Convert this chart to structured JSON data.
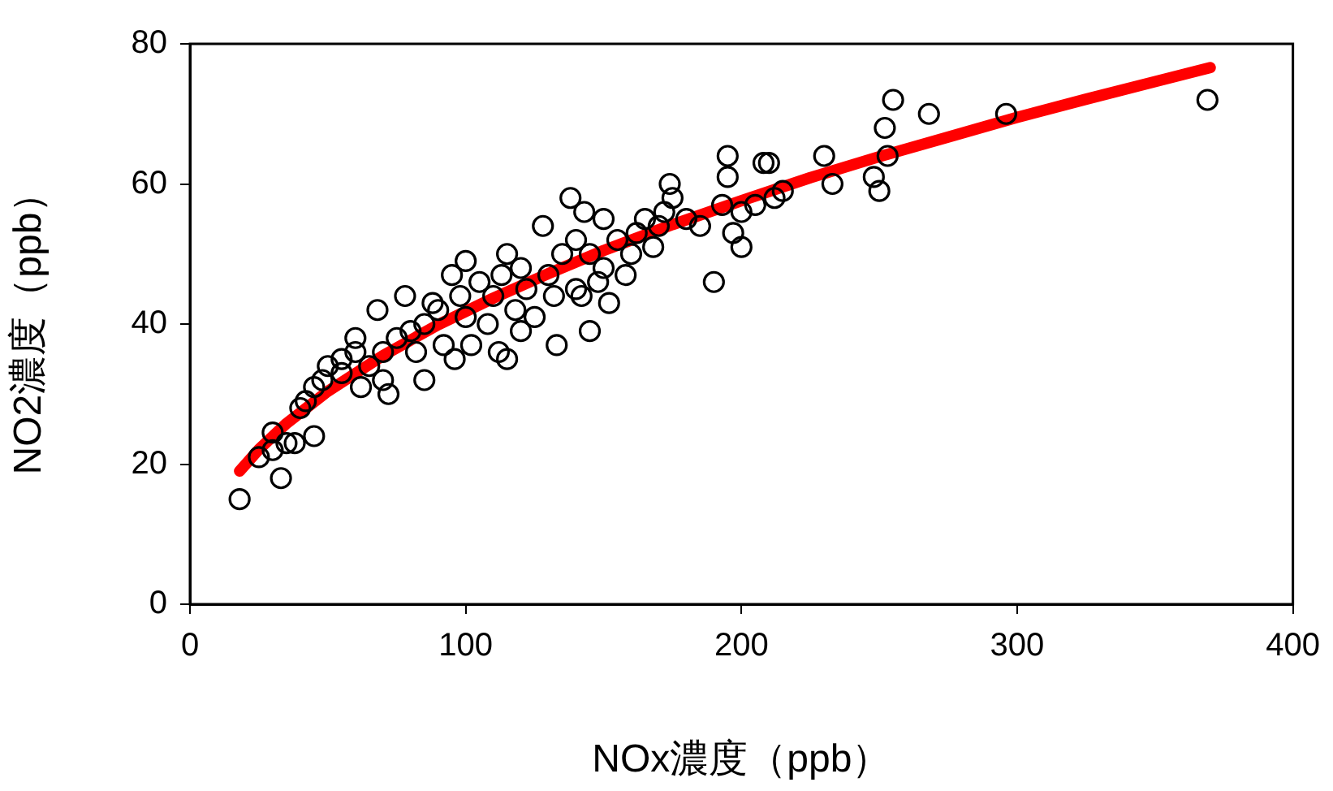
{
  "chart_data": {
    "type": "scatter",
    "xlabel": "NOx濃度（ppb）",
    "ylabel": "NO2濃度（ppb）",
    "xlim": [
      0,
      400
    ],
    "xticks": [
      0,
      100,
      200,
      300,
      400
    ],
    "ylim": [
      0,
      80
    ],
    "yticks": [
      0,
      20,
      40,
      60,
      80
    ],
    "marker": "circle",
    "legend": false,
    "series": [
      {
        "type": "scatter",
        "color": "#000000",
        "x": [
          18,
          33,
          25,
          30,
          38,
          45,
          30,
          35,
          40,
          42,
          45,
          48,
          50,
          55,
          55,
          60,
          60,
          62,
          65,
          68,
          70,
          70,
          72,
          75,
          78,
          80,
          82,
          85,
          85,
          88,
          90,
          92,
          95,
          96,
          98,
          100,
          100,
          102,
          105,
          108,
          110,
          112,
          113,
          115,
          115,
          118,
          120,
          120,
          122,
          125,
          128,
          130,
          132,
          133,
          135,
          138,
          140,
          140,
          142,
          143,
          145,
          145,
          148,
          150,
          150,
          152,
          155,
          158,
          160,
          162,
          165,
          168,
          170,
          172,
          174,
          175,
          180,
          185,
          190,
          193,
          195,
          195,
          197,
          200,
          200,
          205,
          208,
          210,
          212,
          215,
          230,
          233,
          248,
          250,
          252,
          253,
          255,
          268,
          296,
          369
        ],
        "values": [
          15,
          18,
          21,
          22,
          23,
          24,
          24.5,
          23,
          28,
          29,
          31,
          32,
          34,
          33,
          35,
          36,
          38,
          31,
          34,
          42,
          36,
          32,
          30,
          38,
          44,
          39,
          36,
          40,
          32,
          43,
          42,
          37,
          47,
          35,
          44,
          41,
          49,
          37,
          46,
          40,
          44,
          36,
          47,
          35,
          50,
          42,
          48,
          39,
          45,
          41,
          54,
          47,
          44,
          37,
          50,
          58,
          45,
          52,
          44,
          56,
          39,
          50,
          46,
          55,
          48,
          43,
          52,
          47,
          50,
          53,
          55,
          51,
          54,
          56,
          60,
          58,
          55,
          54,
          46,
          57,
          61,
          64,
          53,
          51,
          56,
          57,
          63,
          63,
          58,
          59,
          64,
          60,
          61,
          59,
          68,
          64,
          72,
          70,
          70,
          72
        ]
      },
      {
        "type": "line",
        "color": "#ff0000",
        "marker": "none",
        "x": [
          18,
          25,
          35,
          50,
          70,
          90,
          110,
          130,
          150,
          175,
          200,
          225,
          250,
          275,
          300,
          325,
          350,
          370
        ],
        "values": [
          19.0,
          22.1,
          25.8,
          30.4,
          35.5,
          39.9,
          43.7,
          47.2,
          50.5,
          54.2,
          57.6,
          60.9,
          63.9,
          66.7,
          69.5,
          72.1,
          74.6,
          76.6
        ]
      }
    ]
  }
}
